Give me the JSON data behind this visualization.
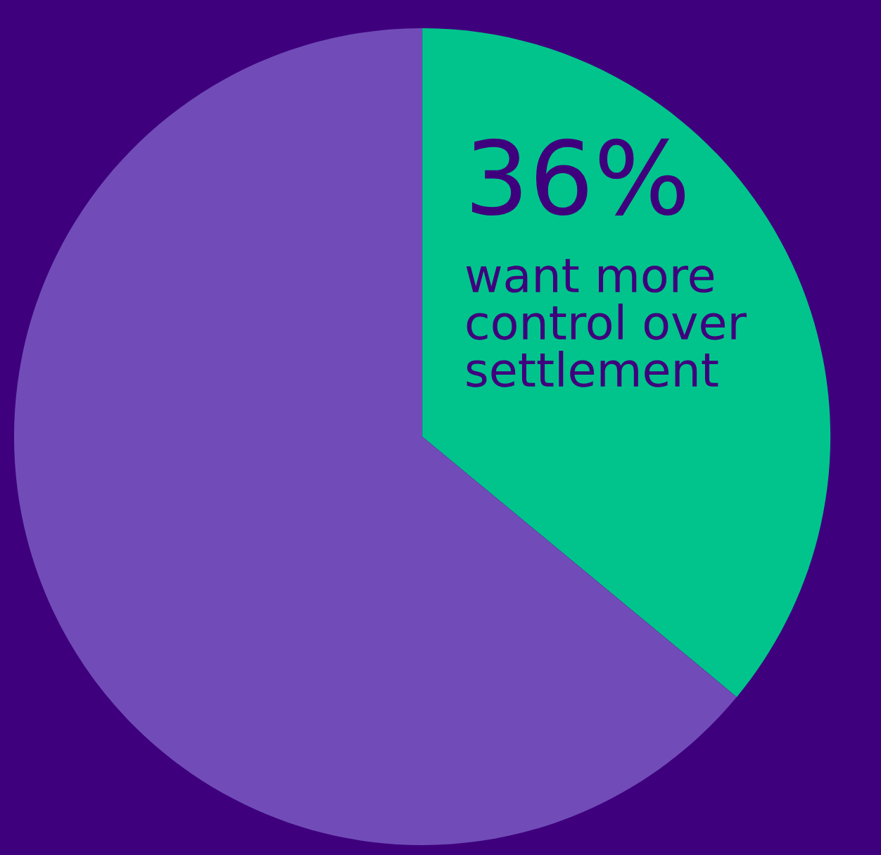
{
  "chart_data": {
    "type": "pie",
    "categories": [
      "want more control over settlement",
      null
    ],
    "values": [
      36,
      64
    ],
    "colors": [
      "#00c48c",
      "#714cb8"
    ],
    "value_labels": [
      "36%",
      null
    ]
  }
}
